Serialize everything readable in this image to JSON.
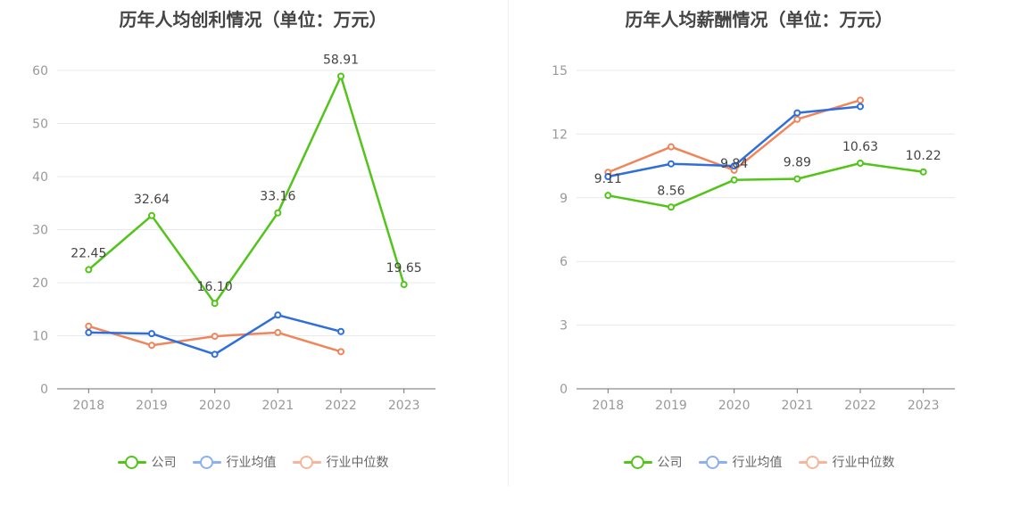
{
  "chart_data": [
    {
      "type": "line",
      "title": "历年人均创利情况（单位：万元）",
      "categories": [
        "2018",
        "2019",
        "2020",
        "2021",
        "2022",
        "2023"
      ],
      "ylim": [
        0,
        60
      ],
      "yticks": [
        0,
        10,
        20,
        30,
        40,
        50,
        60
      ],
      "grid": true,
      "legend": "bottom",
      "series": [
        {
          "name": "公司",
          "color": "#52c41a",
          "values": [
            22.45,
            32.64,
            16.1,
            33.16,
            58.91,
            19.65
          ],
          "labels": [
            "22.45",
            "32.64",
            "16.10",
            "33.16",
            "58.91",
            "19.65"
          ]
        },
        {
          "name": "行业均值",
          "color": "#2f6fdb",
          "values": [
            10.6,
            10.4,
            6.5,
            13.9,
            10.8,
            null
          ]
        },
        {
          "name": "行业中位数",
          "color": "#f0855a",
          "values": [
            11.8,
            8.2,
            9.9,
            10.6,
            7.0,
            null
          ]
        }
      ]
    },
    {
      "type": "line",
      "title": "历年人均薪酬情况（单位：万元）",
      "categories": [
        "2018",
        "2019",
        "2020",
        "2021",
        "2022",
        "2023"
      ],
      "ylim": [
        0,
        15
      ],
      "yticks": [
        0,
        3,
        6,
        9,
        12,
        15
      ],
      "grid": true,
      "legend": "bottom",
      "series": [
        {
          "name": "公司",
          "color": "#52c41a",
          "values": [
            9.11,
            8.56,
            9.84,
            9.89,
            10.63,
            10.22
          ],
          "labels": [
            "9.11",
            "8.56",
            "9.84",
            "9.89",
            "10.63",
            "10.22"
          ]
        },
        {
          "name": "行业均值",
          "color": "#2f6fdb",
          "values": [
            10.0,
            10.6,
            10.5,
            13.0,
            13.3,
            null
          ]
        },
        {
          "name": "行业中位数",
          "color": "#f0855a",
          "values": [
            10.2,
            11.4,
            10.3,
            12.7,
            13.6,
            null
          ]
        }
      ]
    }
  ],
  "legend_style": {
    "公司": {
      "line": "#52c41a",
      "circle": "#52c41a"
    },
    "行业均值": {
      "line": "#8db0ee",
      "circle": "#8db0ee"
    },
    "行业中位数": {
      "line": "#f7b59c",
      "circle": "#f7b59c"
    }
  }
}
